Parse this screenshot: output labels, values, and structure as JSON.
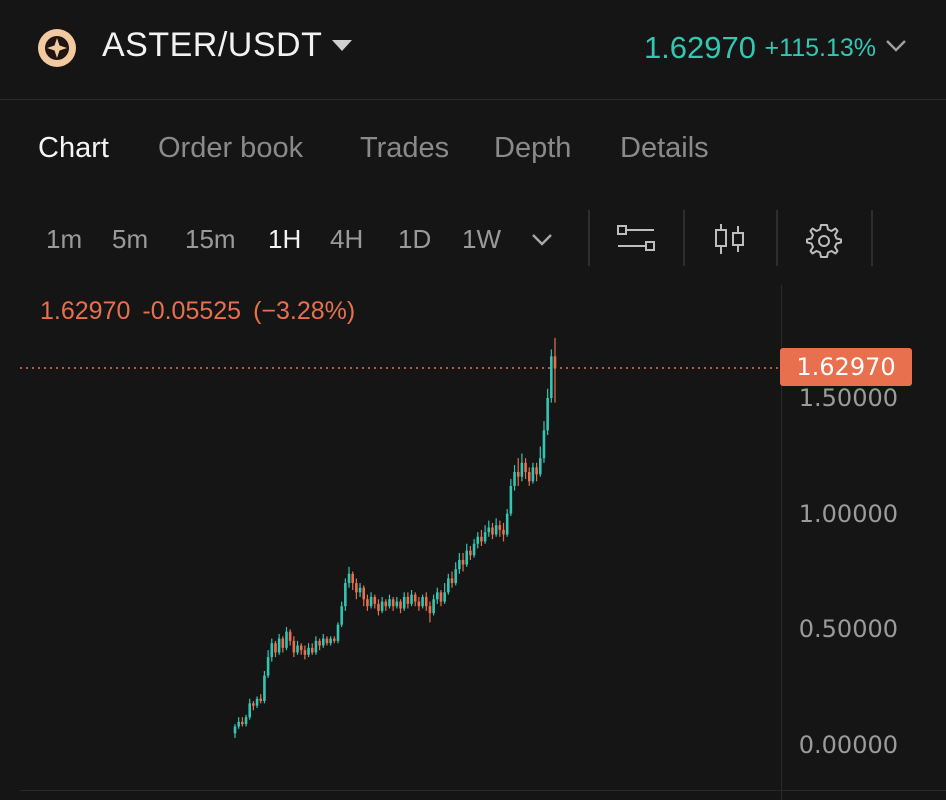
{
  "header": {
    "logo_icon": "aster-logo-icon",
    "pair": "ASTER/USDT",
    "price": "1.62970",
    "change": "+115.13%",
    "up_color": "#33c7b3",
    "down_color": "#e8704e"
  },
  "tabs": [
    {
      "label": "Chart",
      "active": true
    },
    {
      "label": "Order book",
      "active": false
    },
    {
      "label": "Trades",
      "active": false
    },
    {
      "label": "Depth",
      "active": false
    },
    {
      "label": "Details",
      "active": false
    }
  ],
  "timeframes": [
    {
      "label": "1m",
      "active": false
    },
    {
      "label": "5m",
      "active": false
    },
    {
      "label": "15m",
      "active": false
    },
    {
      "label": "1H",
      "active": true
    },
    {
      "label": "4H",
      "active": false
    },
    {
      "label": "1D",
      "active": false
    },
    {
      "label": "1W",
      "active": false
    }
  ],
  "toolbar_icons": [
    "chevron-down-icon",
    "indicators-icon",
    "candlestick-icon",
    "gear-icon"
  ],
  "ohlc": {
    "price": "1.62970",
    "change": "-0.05525",
    "pct": "(−3.28%)"
  },
  "chart_data": {
    "type": "candlestick",
    "price_label": "1.62970",
    "last_price": 1.6297,
    "ylim": [
      0,
      1.75
    ],
    "y_ticks": [
      {
        "value": 1.5,
        "label": "1.50000"
      },
      {
        "value": 1.0,
        "label": "1.00000"
      },
      {
        "value": 0.5,
        "label": "0.50000"
      },
      {
        "value": 0.0,
        "label": "0.00000"
      }
    ],
    "candles": [
      [
        0.05,
        0.08,
        0.03,
        0.09
      ],
      [
        0.08,
        0.1,
        0.07,
        0.12
      ],
      [
        0.1,
        0.09,
        0.08,
        0.12
      ],
      [
        0.09,
        0.12,
        0.08,
        0.13
      ],
      [
        0.12,
        0.18,
        0.11,
        0.2
      ],
      [
        0.18,
        0.17,
        0.15,
        0.19
      ],
      [
        0.17,
        0.2,
        0.16,
        0.21
      ],
      [
        0.2,
        0.19,
        0.18,
        0.22
      ],
      [
        0.19,
        0.3,
        0.18,
        0.32
      ],
      [
        0.3,
        0.38,
        0.29,
        0.41
      ],
      [
        0.38,
        0.44,
        0.36,
        0.46
      ],
      [
        0.44,
        0.4,
        0.38,
        0.45
      ],
      [
        0.4,
        0.46,
        0.39,
        0.48
      ],
      [
        0.46,
        0.42,
        0.4,
        0.47
      ],
      [
        0.42,
        0.49,
        0.41,
        0.51
      ],
      [
        0.49,
        0.45,
        0.43,
        0.5
      ],
      [
        0.45,
        0.4,
        0.38,
        0.47
      ],
      [
        0.4,
        0.43,
        0.39,
        0.45
      ],
      [
        0.43,
        0.41,
        0.39,
        0.44
      ],
      [
        0.41,
        0.39,
        0.37,
        0.43
      ],
      [
        0.39,
        0.42,
        0.38,
        0.44
      ],
      [
        0.42,
        0.4,
        0.39,
        0.44
      ],
      [
        0.4,
        0.45,
        0.39,
        0.47
      ],
      [
        0.45,
        0.43,
        0.41,
        0.46
      ],
      [
        0.43,
        0.46,
        0.42,
        0.48
      ],
      [
        0.46,
        0.44,
        0.43,
        0.47
      ],
      [
        0.44,
        0.46,
        0.43,
        0.47
      ],
      [
        0.46,
        0.45,
        0.44,
        0.47
      ],
      [
        0.45,
        0.52,
        0.44,
        0.53
      ],
      [
        0.52,
        0.6,
        0.51,
        0.62
      ],
      [
        0.6,
        0.7,
        0.58,
        0.72
      ],
      [
        0.7,
        0.74,
        0.68,
        0.77
      ],
      [
        0.74,
        0.7,
        0.67,
        0.75
      ],
      [
        0.7,
        0.66,
        0.63,
        0.72
      ],
      [
        0.66,
        0.68,
        0.64,
        0.7
      ],
      [
        0.68,
        0.63,
        0.6,
        0.69
      ],
      [
        0.63,
        0.6,
        0.58,
        0.65
      ],
      [
        0.6,
        0.64,
        0.59,
        0.66
      ],
      [
        0.64,
        0.61,
        0.59,
        0.65
      ],
      [
        0.61,
        0.58,
        0.56,
        0.63
      ],
      [
        0.58,
        0.62,
        0.57,
        0.64
      ],
      [
        0.62,
        0.6,
        0.58,
        0.63
      ],
      [
        0.6,
        0.63,
        0.59,
        0.65
      ],
      [
        0.63,
        0.6,
        0.58,
        0.64
      ],
      [
        0.6,
        0.62,
        0.59,
        0.64
      ],
      [
        0.62,
        0.59,
        0.57,
        0.63
      ],
      [
        0.59,
        0.64,
        0.58,
        0.66
      ],
      [
        0.64,
        0.61,
        0.59,
        0.66
      ],
      [
        0.61,
        0.65,
        0.6,
        0.67
      ],
      [
        0.65,
        0.62,
        0.6,
        0.66
      ],
      [
        0.62,
        0.6,
        0.58,
        0.64
      ],
      [
        0.6,
        0.64,
        0.59,
        0.65
      ],
      [
        0.64,
        0.6,
        0.58,
        0.66
      ],
      [
        0.6,
        0.57,
        0.53,
        0.62
      ],
      [
        0.57,
        0.63,
        0.56,
        0.65
      ],
      [
        0.63,
        0.66,
        0.61,
        0.68
      ],
      [
        0.66,
        0.62,
        0.6,
        0.67
      ],
      [
        0.62,
        0.66,
        0.61,
        0.7
      ],
      [
        0.66,
        0.72,
        0.65,
        0.74
      ],
      [
        0.72,
        0.7,
        0.68,
        0.75
      ],
      [
        0.7,
        0.76,
        0.69,
        0.79
      ],
      [
        0.76,
        0.8,
        0.74,
        0.83
      ],
      [
        0.8,
        0.78,
        0.75,
        0.83
      ],
      [
        0.78,
        0.84,
        0.77,
        0.87
      ],
      [
        0.84,
        0.82,
        0.8,
        0.86
      ],
      [
        0.82,
        0.87,
        0.81,
        0.89
      ],
      [
        0.87,
        0.9,
        0.85,
        0.92
      ],
      [
        0.9,
        0.88,
        0.86,
        0.93
      ],
      [
        0.88,
        0.92,
        0.87,
        0.95
      ],
      [
        0.92,
        0.94,
        0.9,
        0.97
      ],
      [
        0.94,
        0.91,
        0.89,
        0.96
      ],
      [
        0.91,
        0.95,
        0.9,
        0.98
      ],
      [
        0.95,
        0.93,
        0.9,
        0.97
      ],
      [
        0.93,
        0.91,
        0.88,
        0.96
      ],
      [
        0.91,
        1.0,
        0.9,
        1.02
      ],
      [
        1.0,
        1.12,
        0.99,
        1.15
      ],
      [
        1.12,
        1.18,
        1.1,
        1.21
      ],
      [
        1.18,
        1.16,
        1.12,
        1.24
      ],
      [
        1.16,
        1.22,
        1.14,
        1.26
      ],
      [
        1.22,
        1.18,
        1.15,
        1.24
      ],
      [
        1.18,
        1.14,
        1.12,
        1.2
      ],
      [
        1.14,
        1.2,
        1.13,
        1.22
      ],
      [
        1.2,
        1.17,
        1.14,
        1.22
      ],
      [
        1.17,
        1.24,
        1.16,
        1.29
      ],
      [
        1.24,
        1.36,
        1.22,
        1.4
      ],
      [
        1.36,
        1.5,
        1.34,
        1.54
      ],
      [
        1.5,
        1.68,
        1.48,
        1.71
      ],
      [
        1.68,
        1.63,
        1.48,
        1.76
      ]
    ]
  }
}
